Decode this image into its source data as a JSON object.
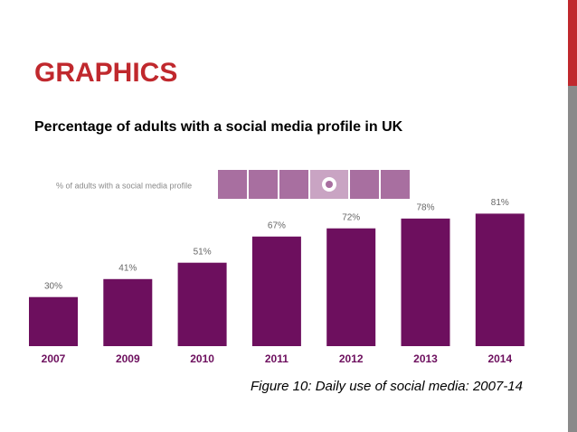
{
  "title": "GRAPHICS",
  "subtitle": "Percentage of adults with a social media profile in UK",
  "caption": "Figure 10: Daily use of social media: 2007-14",
  "chart_data": {
    "type": "bar",
    "title": "% of adults with a social media profile",
    "categories": [
      "2007",
      "2009",
      "2010",
      "2011",
      "2012",
      "2013",
      "2014"
    ],
    "values": [
      30,
      41,
      51,
      67,
      72,
      78,
      81
    ],
    "value_labels": [
      "30%",
      "41%",
      "51%",
      "67%",
      "72%",
      "78%",
      "81%"
    ],
    "color": "#6d0f5e"
  }
}
